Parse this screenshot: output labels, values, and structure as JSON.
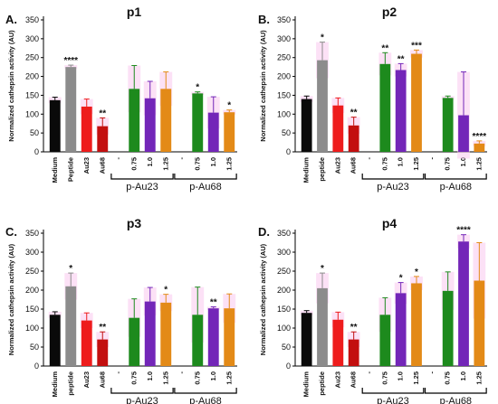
{
  "colors": {
    "Medium": "#0a0a0a",
    "peptide": "#8c8c8c",
    "Au23": "#ee1c1c",
    "Au68": "#c30f0f",
    "c075": "#1d8a1d",
    "c10": "#7326b8",
    "c125": "#e38a17",
    "error_highlight": "#f9c8ef"
  },
  "chart_data": [
    {
      "type": "bar",
      "panel_letter": "A.",
      "title": "p1",
      "ylabel": "Normalized cathepsin activity (AU)",
      "ylim": [
        0,
        350
      ],
      "yticks": [
        0,
        50,
        100,
        150,
        200,
        250,
        300,
        350
      ],
      "categories": [
        "Medium",
        "Peptide",
        "Au23",
        "Au68",
        "-",
        "0.75",
        "1.0",
        "1.25",
        "-",
        "0.75",
        "1.0",
        "1.25"
      ],
      "values": [
        137,
        225,
        120,
        68,
        null,
        167,
        142,
        167,
        null,
        155,
        104,
        105
      ],
      "errors": [
        8,
        5,
        20,
        22,
        null,
        62,
        45,
        45,
        null,
        4,
        42,
        6
      ],
      "significance": [
        "",
        "****",
        "",
        "**",
        "",
        "",
        "",
        "",
        "",
        "*",
        "",
        "*"
      ],
      "color_keys": [
        "Medium",
        "peptide",
        "Au23",
        "Au68",
        "",
        "c075",
        "c10",
        "c125",
        "",
        "c075",
        "c10",
        "c125"
      ],
      "groups": [
        {
          "label": "p-Au23",
          "start": 4,
          "end": 7
        },
        {
          "label": "p-Au68",
          "start": 8,
          "end": 11
        }
      ]
    },
    {
      "type": "bar",
      "panel_letter": "B.",
      "title": "p2",
      "ylabel": "Normalized cathepsin activity (AU)",
      "ylim": [
        0,
        350
      ],
      "yticks": [
        0,
        50,
        100,
        150,
        200,
        250,
        300,
        350
      ],
      "categories": [
        "Medium",
        "peptide",
        "Au23",
        "Au68",
        "-",
        "0.75",
        "1.0",
        "1.25",
        "-",
        "0.75",
        "1.0",
        "1.25"
      ],
      "values": [
        140,
        243,
        123,
        70,
        null,
        233,
        217,
        260,
        null,
        143,
        97,
        22
      ],
      "errors": [
        8,
        48,
        20,
        22,
        null,
        30,
        17,
        10,
        null,
        5,
        115,
        7
      ],
      "significance": [
        "",
        "*",
        "",
        "**",
        "",
        "**",
        "**",
        "***",
        "",
        "",
        "",
        "****"
      ],
      "color_keys": [
        "Medium",
        "peptide",
        "Au23",
        "Au68",
        "",
        "c075",
        "c10",
        "c125",
        "",
        "c075",
        "c10",
        "c125"
      ],
      "groups": [
        {
          "label": "p-Au23",
          "start": 4,
          "end": 7
        },
        {
          "label": "p-Au68",
          "start": 8,
          "end": 11
        }
      ]
    },
    {
      "type": "bar",
      "panel_letter": "C.",
      "title": "p3",
      "ylabel": "Normalized cathepsin activity (AU)",
      "ylim": [
        0,
        350
      ],
      "yticks": [
        0,
        50,
        100,
        150,
        200,
        250,
        300,
        350
      ],
      "categories": [
        "Medium",
        "peptide",
        "Au23",
        "Au68",
        "-",
        "0.75",
        "1.0",
        "1.25",
        "-",
        "0.75",
        "1.0",
        "1.25"
      ],
      "values": [
        135,
        210,
        120,
        70,
        null,
        127,
        170,
        167,
        null,
        135,
        152,
        152
      ],
      "errors": [
        8,
        35,
        20,
        20,
        null,
        50,
        37,
        22,
        null,
        73,
        4,
        38
      ],
      "significance": [
        "",
        "*",
        "",
        "**",
        "",
        "",
        "",
        "*",
        "",
        "",
        "**",
        ""
      ],
      "color_keys": [
        "Medium",
        "peptide",
        "Au23",
        "Au68",
        "",
        "c075",
        "c10",
        "c125",
        "",
        "c075",
        "c10",
        "c125"
      ],
      "groups": [
        {
          "label": "p-Au23",
          "start": 4,
          "end": 7
        },
        {
          "label": "p-Au68",
          "start": 8,
          "end": 11
        }
      ]
    },
    {
      "type": "bar",
      "panel_letter": "D.",
      "title": "p4",
      "ylabel": "Normalized cathepsin activity (AU)",
      "ylim": [
        0,
        350
      ],
      "yticks": [
        0,
        50,
        100,
        150,
        200,
        250,
        300,
        350
      ],
      "categories": [
        "Medium",
        "peptide",
        "Au23",
        "Au68",
        "-",
        "0.75",
        "1.0",
        "1.25",
        "-",
        "0.75",
        "1.0",
        "1.25"
      ],
      "values": [
        140,
        205,
        122,
        70,
        null,
        135,
        192,
        218,
        null,
        198,
        328,
        225
      ],
      "errors": [
        6,
        40,
        20,
        20,
        null,
        45,
        28,
        18,
        null,
        50,
        18,
        100
      ],
      "significance": [
        "",
        "*",
        "",
        "**",
        "",
        "",
        "*",
        "*",
        "",
        "",
        "****",
        ""
      ],
      "color_keys": [
        "Medium",
        "peptide",
        "Au23",
        "Au68",
        "",
        "c075",
        "c10",
        "c125",
        "",
        "c075",
        "c10",
        "c125"
      ],
      "groups": [
        {
          "label": "p-Au23",
          "start": 4,
          "end": 7
        },
        {
          "label": "p-Au68",
          "start": 8,
          "end": 11
        }
      ]
    }
  ]
}
